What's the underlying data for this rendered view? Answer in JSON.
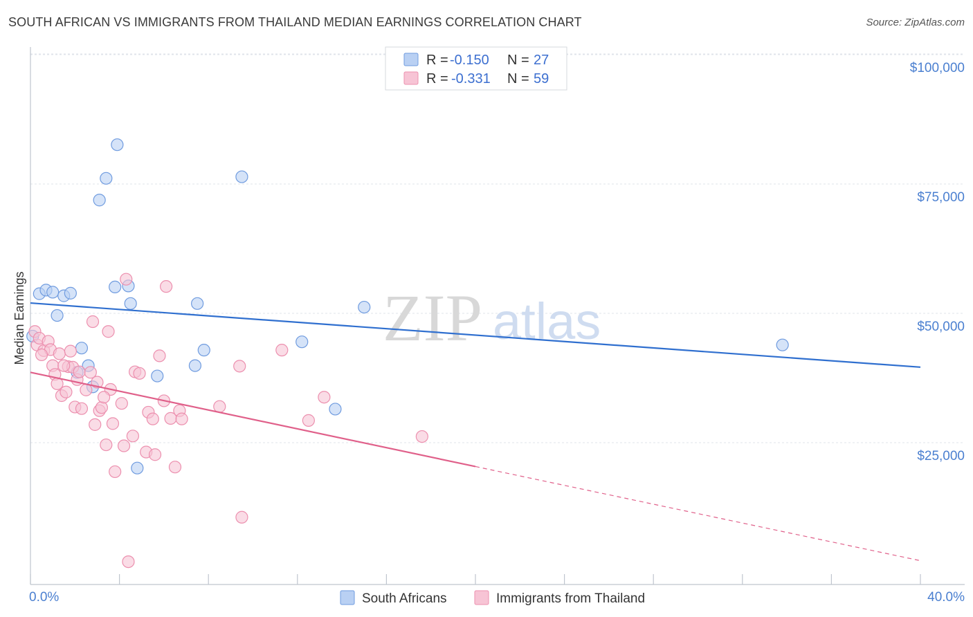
{
  "title": "SOUTH AFRICAN VS IMMIGRANTS FROM THAILAND MEDIAN EARNINGS CORRELATION CHART",
  "source": "Source: ZipAtlas.com",
  "watermark": {
    "zip": "ZIP",
    "atlas": "atlas"
  },
  "colors": {
    "blue_fill": "#b9d0f3",
    "blue_stroke": "#6f9bdf",
    "blue_line": "#2f6fcf",
    "pink_fill": "#f7c4d5",
    "pink_stroke": "#ec8fae",
    "pink_line": "#e0608a",
    "grid": "#dfe3ea",
    "tick_text": "#4a7fd0"
  },
  "legend": {
    "r_label": "R =",
    "n_label": "N =",
    "rows": [
      {
        "r": "-0.150",
        "n": "27"
      },
      {
        "r": "-0.331",
        "n": "59"
      }
    ]
  },
  "chart_data": {
    "type": "scatter",
    "xlabel": "",
    "ylabel": "Median Earnings",
    "xlim": [
      0,
      40
    ],
    "ylim": [
      0,
      103000
    ],
    "x_tick_labels": [
      "0.0%",
      "40.0%"
    ],
    "y_ticks": [
      25000,
      50000,
      75000,
      100000
    ],
    "y_tick_labels": [
      "$25,000",
      "$50,000",
      "$75,000",
      "$100,000"
    ],
    "grid": true,
    "legend_position": "top-center",
    "series": [
      {
        "name": "South Africans",
        "trend": {
          "x0": 0,
          "y0": 54400,
          "x1": 40,
          "y1": 42000,
          "dashed_to": null
        },
        "points": [
          [
            0.1,
            48000
          ],
          [
            0.4,
            56200
          ],
          [
            0.7,
            56900
          ],
          [
            1.0,
            56500
          ],
          [
            1.2,
            52000
          ],
          [
            1.5,
            55800
          ],
          [
            1.8,
            56300
          ],
          [
            2.3,
            45700
          ],
          [
            2.1,
            41000
          ],
          [
            2.6,
            42300
          ],
          [
            2.8,
            38200
          ],
          [
            3.1,
            74300
          ],
          [
            3.4,
            78500
          ],
          [
            3.8,
            57500
          ],
          [
            3.9,
            85000
          ],
          [
            4.4,
            57700
          ],
          [
            4.5,
            54300
          ],
          [
            4.8,
            22500
          ],
          [
            5.7,
            40300
          ],
          [
            7.4,
            42300
          ],
          [
            7.5,
            54300
          ],
          [
            7.8,
            45300
          ],
          [
            9.5,
            78800
          ],
          [
            12.2,
            46900
          ],
          [
            13.7,
            33900
          ],
          [
            15.0,
            53600
          ],
          [
            33.8,
            46300
          ]
        ]
      },
      {
        "name": "Immigrants from Thailand",
        "trend": {
          "x0": 0,
          "y0": 41000,
          "x1": 20,
          "y1": 22800,
          "dashed_to": {
            "x": 40,
            "y": 4600
          }
        },
        "points": [
          [
            0.2,
            48900
          ],
          [
            0.3,
            46300
          ],
          [
            0.4,
            47600
          ],
          [
            0.6,
            45200
          ],
          [
            0.8,
            47000
          ],
          [
            0.9,
            45400
          ],
          [
            1.0,
            42300
          ],
          [
            1.1,
            40600
          ],
          [
            1.2,
            38800
          ],
          [
            1.4,
            36500
          ],
          [
            1.3,
            44600
          ],
          [
            1.6,
            37200
          ],
          [
            1.7,
            42100
          ],
          [
            1.8,
            45100
          ],
          [
            1.9,
            42000
          ],
          [
            2.0,
            34300
          ],
          [
            2.1,
            39600
          ],
          [
            2.2,
            41100
          ],
          [
            2.3,
            34000
          ],
          [
            2.5,
            37600
          ],
          [
            2.7,
            41000
          ],
          [
            2.9,
            30900
          ],
          [
            3.0,
            39100
          ],
          [
            3.1,
            33600
          ],
          [
            3.2,
            34200
          ],
          [
            3.4,
            27000
          ],
          [
            3.5,
            48900
          ],
          [
            3.6,
            37700
          ],
          [
            3.7,
            31100
          ],
          [
            3.8,
            21800
          ],
          [
            2.8,
            50800
          ],
          [
            4.1,
            35000
          ],
          [
            4.2,
            26800
          ],
          [
            4.3,
            59000
          ],
          [
            4.6,
            28700
          ],
          [
            4.7,
            41100
          ],
          [
            4.9,
            40800
          ],
          [
            5.2,
            25600
          ],
          [
            5.3,
            33300
          ],
          [
            5.5,
            32000
          ],
          [
            5.6,
            25100
          ],
          [
            5.8,
            44200
          ],
          [
            6.0,
            35500
          ],
          [
            6.1,
            57600
          ],
          [
            6.3,
            32100
          ],
          [
            6.5,
            22700
          ],
          [
            6.7,
            33600
          ],
          [
            6.8,
            32000
          ],
          [
            8.5,
            34400
          ],
          [
            9.4,
            42200
          ],
          [
            9.5,
            13000
          ],
          [
            11.3,
            45300
          ],
          [
            12.5,
            31700
          ],
          [
            13.2,
            36200
          ],
          [
            17.6,
            28600
          ],
          [
            4.4,
            4400
          ],
          [
            0.5,
            44400
          ],
          [
            1.5,
            42300
          ],
          [
            3.3,
            36200
          ]
        ]
      }
    ]
  }
}
